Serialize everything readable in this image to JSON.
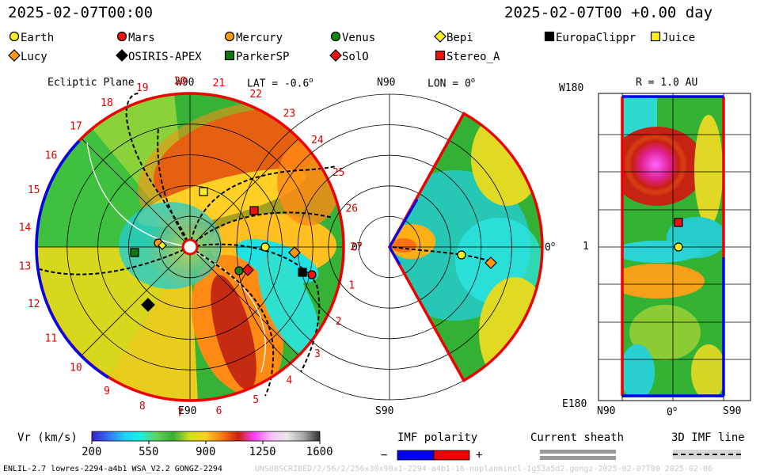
{
  "header": {
    "date_left": "2025-02-07T00:00",
    "date_right": "2025-02-07T00 +0.00 day"
  },
  "legend": [
    {
      "name": "Earth",
      "shape": "circle",
      "color": "#ffee22"
    },
    {
      "name": "Mars",
      "shape": "circle",
      "color": "#ee1111"
    },
    {
      "name": "Mercury",
      "shape": "circle",
      "color": "#ff9911"
    },
    {
      "name": "Venus",
      "shape": "circle",
      "color": "#118811"
    },
    {
      "name": "Bepi",
      "shape": "diamond",
      "color": "#ffee22"
    },
    {
      "name": "EuropaClippr",
      "shape": "square",
      "color": "#000000"
    },
    {
      "name": "Juice",
      "shape": "square",
      "color": "#ffee22"
    },
    {
      "name": "Lucy",
      "shape": "diamond",
      "color": "#ff9911"
    },
    {
      "name": "OSIRIS-APEX",
      "shape": "diamond",
      "color": "#000000"
    },
    {
      "name": "ParkerSP",
      "shape": "square",
      "color": "#117711"
    },
    {
      "name": "SolO",
      "shape": "diamond",
      "color": "#ee1111"
    },
    {
      "name": "Stereo_A",
      "shape": "square",
      "color": "#ee1111"
    }
  ],
  "panels": {
    "ecliptic": {
      "title": "Ecliptic Plane",
      "top_label": "W90",
      "bottom_label": "E90",
      "right_label": "0",
      "lat_label": "LAT = -0.6",
      "carrington_labels": [
        "1",
        "2",
        "3",
        "4",
        "5",
        "6",
        "7",
        "8",
        "9",
        "10",
        "11",
        "12",
        "13",
        "14",
        "15",
        "16",
        "17",
        "18",
        "19",
        "20",
        "21",
        "22",
        "23",
        "24",
        "25",
        "26",
        "27"
      ]
    },
    "meridional": {
      "top_label": "N90",
      "lon_label": "LON = 0",
      "bottom_label": "S90",
      "right_label": "0"
    },
    "map": {
      "r_label": "R = 1.0 AU",
      "top_left_label": "W180",
      "mid_left_label": "1",
      "bottom_left_label": "E180",
      "x_labels": [
        "N90",
        "0",
        "S90"
      ]
    }
  },
  "colorbar": {
    "label": "Vr (km/s)",
    "ticks": [
      "200",
      "550",
      "900",
      "1250",
      "1600"
    ],
    "min": 200,
    "max": 1600,
    "stops": [
      "#3a20c8",
      "#2f6fff",
      "#20d0ff",
      "#19f0e0",
      "#5fd35a",
      "#33b033",
      "#d0e020",
      "#ffd020",
      "#ff7a10",
      "#cc2010",
      "#ff40ff",
      "#ffc0ff",
      "#e8e8e8",
      "#a8a8a8",
      "#303030"
    ]
  },
  "imf": {
    "polarity_label": "IMF polarity",
    "minus": "−",
    "plus": "+",
    "sheath_label": "Current sheath",
    "line_label": "3D IMF line",
    "neg_color": "#0000ee",
    "pos_color": "#ee0000"
  },
  "footer": {
    "left": "ENLIL-2.7 lowres-2294-a4b1 WSA_V2.2 GONGZ-2294",
    "right": "UNSUBSCRIBED/2/56/2/256x30x90x1-2294-a4b1-16-noplanmincl-1g53a5d2.gongz-2025-02-07T00 2025-02-06"
  }
}
